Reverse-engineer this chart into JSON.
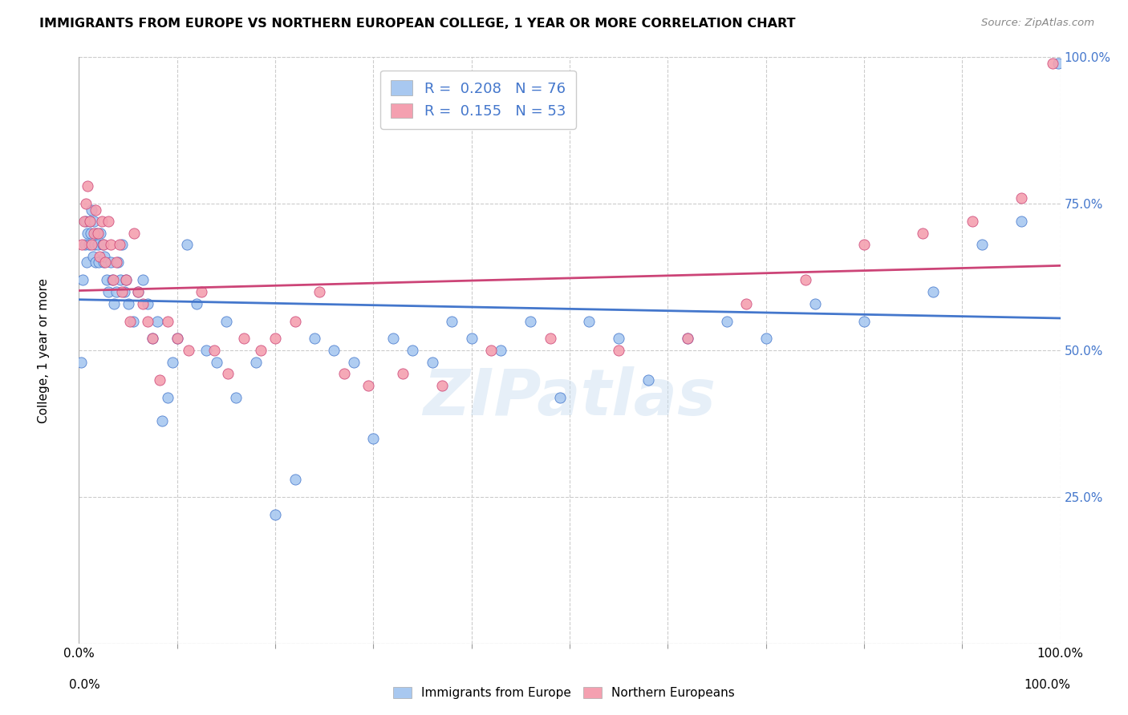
{
  "title": "IMMIGRANTS FROM EUROPE VS NORTHERN EUROPEAN COLLEGE, 1 YEAR OR MORE CORRELATION CHART",
  "source": "Source: ZipAtlas.com",
  "ylabel": "College, 1 year or more",
  "y_ticks": [
    0.0,
    0.25,
    0.5,
    0.75,
    1.0
  ],
  "y_tick_labels": [
    "",
    "25.0%",
    "50.0%",
    "75.0%",
    "100.0%"
  ],
  "watermark": "ZIPatlas",
  "color_blue": "#a8c8f0",
  "color_pink": "#f4a0b0",
  "trendline_blue": "#4477cc",
  "trendline_pink": "#cc4477",
  "legend_text_color": "#4477cc",
  "blue_series_x": [
    0.002,
    0.004,
    0.006,
    0.007,
    0.008,
    0.009,
    0.01,
    0.011,
    0.012,
    0.013,
    0.014,
    0.015,
    0.016,
    0.017,
    0.018,
    0.019,
    0.02,
    0.022,
    0.024,
    0.025,
    0.026,
    0.028,
    0.03,
    0.032,
    0.034,
    0.036,
    0.038,
    0.04,
    0.042,
    0.044,
    0.046,
    0.048,
    0.05,
    0.055,
    0.06,
    0.065,
    0.07,
    0.075,
    0.08,
    0.085,
    0.09,
    0.095,
    0.1,
    0.11,
    0.12,
    0.13,
    0.14,
    0.15,
    0.16,
    0.18,
    0.2,
    0.22,
    0.24,
    0.26,
    0.28,
    0.3,
    0.32,
    0.34,
    0.36,
    0.38,
    0.4,
    0.43,
    0.46,
    0.49,
    0.52,
    0.55,
    0.58,
    0.62,
    0.66,
    0.7,
    0.75,
    0.8,
    0.87,
    0.92,
    0.96,
    0.998
  ],
  "blue_series_y": [
    0.48,
    0.62,
    0.68,
    0.72,
    0.65,
    0.7,
    0.68,
    0.72,
    0.7,
    0.74,
    0.66,
    0.72,
    0.68,
    0.65,
    0.7,
    0.68,
    0.65,
    0.7,
    0.68,
    0.65,
    0.66,
    0.62,
    0.6,
    0.65,
    0.62,
    0.58,
    0.6,
    0.65,
    0.62,
    0.68,
    0.6,
    0.62,
    0.58,
    0.55,
    0.6,
    0.62,
    0.58,
    0.52,
    0.55,
    0.38,
    0.42,
    0.48,
    0.52,
    0.68,
    0.58,
    0.5,
    0.48,
    0.55,
    0.42,
    0.48,
    0.22,
    0.28,
    0.52,
    0.5,
    0.48,
    0.35,
    0.52,
    0.5,
    0.48,
    0.55,
    0.52,
    0.5,
    0.55,
    0.42,
    0.55,
    0.52,
    0.45,
    0.52,
    0.55,
    0.52,
    0.58,
    0.55,
    0.6,
    0.68,
    0.72,
    0.99
  ],
  "pink_series_x": [
    0.003,
    0.005,
    0.007,
    0.009,
    0.011,
    0.013,
    0.015,
    0.017,
    0.019,
    0.021,
    0.023,
    0.025,
    0.027,
    0.03,
    0.032,
    0.035,
    0.038,
    0.041,
    0.044,
    0.048,
    0.052,
    0.056,
    0.06,
    0.065,
    0.07,
    0.075,
    0.082,
    0.09,
    0.1,
    0.112,
    0.125,
    0.138,
    0.152,
    0.168,
    0.185,
    0.2,
    0.22,
    0.245,
    0.27,
    0.295,
    0.33,
    0.37,
    0.42,
    0.48,
    0.55,
    0.62,
    0.68,
    0.74,
    0.8,
    0.86,
    0.91,
    0.96,
    0.992
  ],
  "pink_series_y": [
    0.68,
    0.72,
    0.75,
    0.78,
    0.72,
    0.68,
    0.7,
    0.74,
    0.7,
    0.66,
    0.72,
    0.68,
    0.65,
    0.72,
    0.68,
    0.62,
    0.65,
    0.68,
    0.6,
    0.62,
    0.55,
    0.7,
    0.6,
    0.58,
    0.55,
    0.52,
    0.45,
    0.55,
    0.52,
    0.5,
    0.6,
    0.5,
    0.46,
    0.52,
    0.5,
    0.52,
    0.55,
    0.6,
    0.46,
    0.44,
    0.46,
    0.44,
    0.5,
    0.52,
    0.5,
    0.52,
    0.58,
    0.62,
    0.68,
    0.7,
    0.72,
    0.76,
    0.99
  ]
}
